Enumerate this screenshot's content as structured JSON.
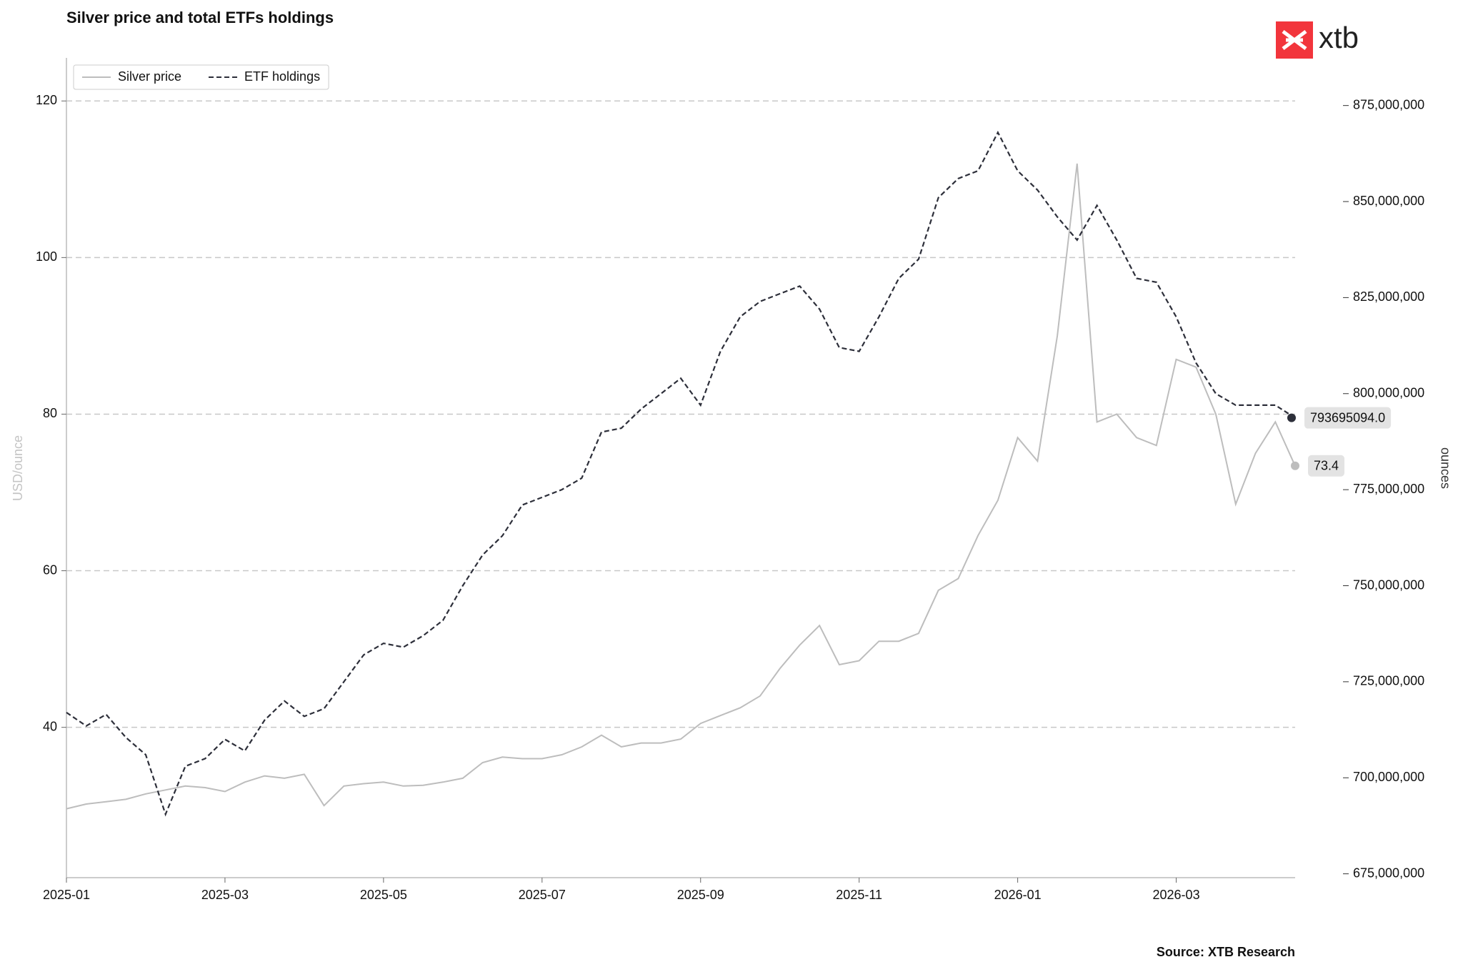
{
  "chart_data": {
    "type": "line",
    "title": "Silver price and total ETFs holdings",
    "logo": "xtb",
    "source": "Source: XTB Research",
    "ylabel": "USD/ounce",
    "y2label": "ounces",
    "categories": [
      "2025-01",
      null,
      null,
      null,
      null,
      null,
      null,
      null,
      "2025-03",
      null,
      null,
      null,
      null,
      null,
      null,
      null,
      "2025-05",
      null,
      null,
      null,
      null,
      null,
      null,
      null,
      "2025-07",
      null,
      null,
      null,
      null,
      null,
      null,
      null,
      "2025-09",
      null,
      null,
      null,
      null,
      null,
      null,
      null,
      "2025-11",
      null,
      null,
      null,
      null,
      null,
      null,
      null,
      "2026-01",
      null,
      null,
      null,
      null,
      null,
      null,
      null,
      "2026-03",
      null,
      null,
      null,
      null,
      null,
      null
    ],
    "series": [
      {
        "name": "Silver price",
        "color": "#bdbdbd",
        "dash": false,
        "axis": "y",
        "values": [
          29.6,
          30.2,
          30.5,
          30.8,
          31.5,
          32.0,
          32.5,
          32.3,
          31.8,
          33.0,
          33.8,
          33.5,
          34.0,
          30.0,
          32.5,
          32.8,
          33.0,
          32.5,
          32.6,
          33.0,
          33.5,
          35.5,
          36.2,
          36.0,
          36.0,
          36.5,
          37.5,
          39.0,
          37.5,
          38.0,
          38.0,
          38.5,
          40.5,
          41.5,
          42.5,
          44.0,
          47.5,
          50.5,
          53.0,
          48.0,
          48.5,
          51.0,
          51.0,
          52.0,
          57.5,
          59.0,
          64.5,
          69.0,
          77.0,
          74.0,
          90.0,
          112.0,
          79.0,
          80.0,
          77.0,
          76.0,
          87.0,
          86.0,
          80.0,
          68.5,
          75.0,
          79.0,
          73.4
        ]
      },
      {
        "name": "ETF holdings",
        "color": "#2d2f3a",
        "dash": true,
        "axis": "y2",
        "values": [
          717000000,
          713500000,
          716500000,
          710500000,
          706000000,
          690500000,
          703000000,
          705000000,
          710000000,
          707000000,
          715000000,
          720000000,
          716000000,
          718000000,
          725000000,
          732000000,
          735000000,
          734000000,
          737000000,
          741000000,
          750000000,
          758000000,
          763000000,
          771000000,
          773000000,
          775000000,
          778000000,
          790000000,
          791000000,
          796000000,
          800000000,
          804000000,
          797000000,
          811000000,
          820000000,
          824000000,
          826000000,
          828000000,
          822000000,
          812000000,
          811000000,
          820000000,
          830000000,
          835000000,
          851000000,
          856000000,
          858000000,
          868000000,
          858000000,
          853000000,
          846000000,
          840000000,
          849000000,
          840000000,
          830000000,
          829000000,
          820000000,
          808000000,
          800000000,
          797000000,
          797000000,
          797000000,
          793695094
        ],
        "value_labels": [
          null,
          null,
          null,
          null,
          null,
          null,
          null,
          null,
          null,
          null,
          null,
          null,
          null,
          null,
          null,
          null,
          null,
          null,
          null,
          null,
          null,
          null,
          null,
          null,
          null,
          null,
          null,
          null,
          null,
          null,
          null,
          null,
          null,
          null,
          null,
          null,
          null,
          null,
          null,
          null,
          null,
          null,
          null,
          null,
          null,
          null,
          null,
          null,
          null,
          null,
          null,
          null,
          null,
          null,
          null,
          null,
          null,
          null,
          null,
          null,
          null,
          null,
          "793695094.0"
        ]
      }
    ],
    "ylim": [
      20.8,
      125.5
    ],
    "yticks": [
      40,
      60,
      80,
      100,
      120
    ],
    "y2lim": [
      674000000,
      887400000
    ],
    "y2ticks": [
      {
        "value": 675000000,
        "label": "675,000,000"
      },
      {
        "value": 700000000,
        "label": "700,000,000"
      },
      {
        "value": 725000000,
        "label": "725,000,000"
      },
      {
        "value": 750000000,
        "label": "750,000,000"
      },
      {
        "value": 775000000,
        "label": "775,000,000"
      },
      {
        "value": 800000000,
        "label": "800,000,000"
      },
      {
        "value": 825000000,
        "label": "825,000,000"
      },
      {
        "value": 850000000,
        "label": "850,000,000"
      },
      {
        "value": 875000000,
        "label": "875,000,000"
      }
    ],
    "grid": true,
    "legend": "upper left"
  }
}
